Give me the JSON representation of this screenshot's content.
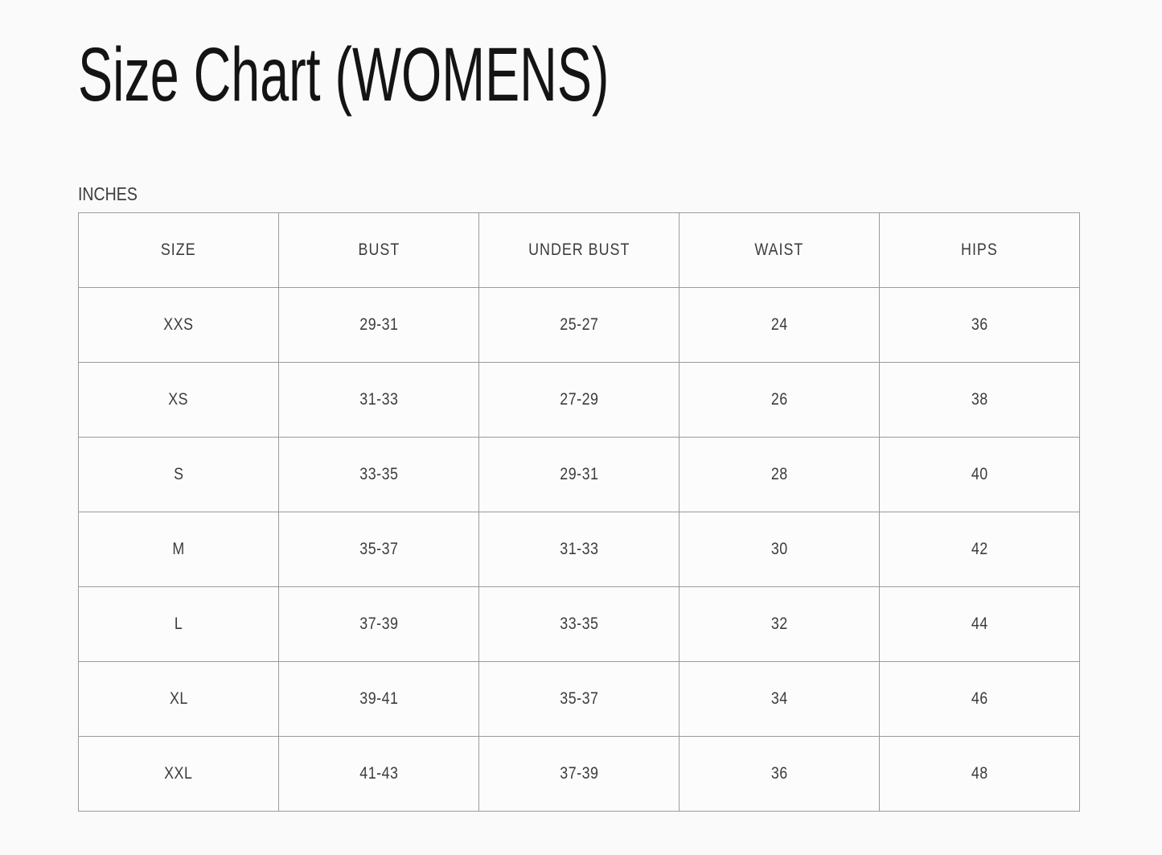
{
  "page": {
    "title": "Size Chart (WOMENS)",
    "unit_label": "INCHES"
  },
  "colors": {
    "page_background": "#fafafa",
    "cell_background": "#fcfcfc",
    "table_border": "#9b9b9b",
    "outer_border": "#b5b5b5",
    "title_text": "#141414",
    "table_text": "#3c3c3c"
  },
  "chart_data": {
    "type": "table",
    "title": "Size Chart (WOMENS)",
    "unit": "INCHES",
    "columns": [
      "SIZE",
      "BUST",
      "UNDER BUST",
      "WAIST",
      "HIPS"
    ],
    "column_keys": [
      "size",
      "bust",
      "under-bust",
      "waist",
      "hips"
    ],
    "rows": [
      [
        "XXS",
        "29-31",
        "25-27",
        "24",
        "36"
      ],
      [
        "XS",
        "31-33",
        "27-29",
        "26",
        "38"
      ],
      [
        "S",
        "33-35",
        "29-31",
        "28",
        "40"
      ],
      [
        "M",
        "35-37",
        "31-33",
        "30",
        "42"
      ],
      [
        "L",
        "37-39",
        "33-35",
        "32",
        "44"
      ],
      [
        "XL",
        "39-41",
        "35-37",
        "34",
        "46"
      ],
      [
        "XXL",
        "41-43",
        "37-39",
        "36",
        "48"
      ]
    ],
    "layout": {
      "columns_equal_width": true,
      "grid": true,
      "text_align": "center"
    }
  }
}
